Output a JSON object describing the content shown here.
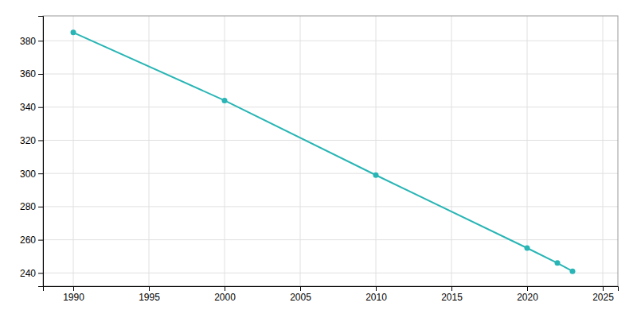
{
  "chart_data": {
    "type": "line",
    "x": [
      1990,
      2000,
      2010,
      2020,
      2022,
      2023
    ],
    "values": [
      385,
      344,
      299,
      255,
      246,
      241
    ],
    "color": "#29b5b5",
    "marker": "circle",
    "xlim": [
      1988,
      2026
    ],
    "ylim": [
      232,
      395
    ],
    "xticks": [
      1990,
      1995,
      2000,
      2005,
      2010,
      2015,
      2020,
      2025
    ],
    "yticks": [
      240,
      260,
      280,
      300,
      320,
      340,
      360,
      380
    ],
    "grid": true
  }
}
